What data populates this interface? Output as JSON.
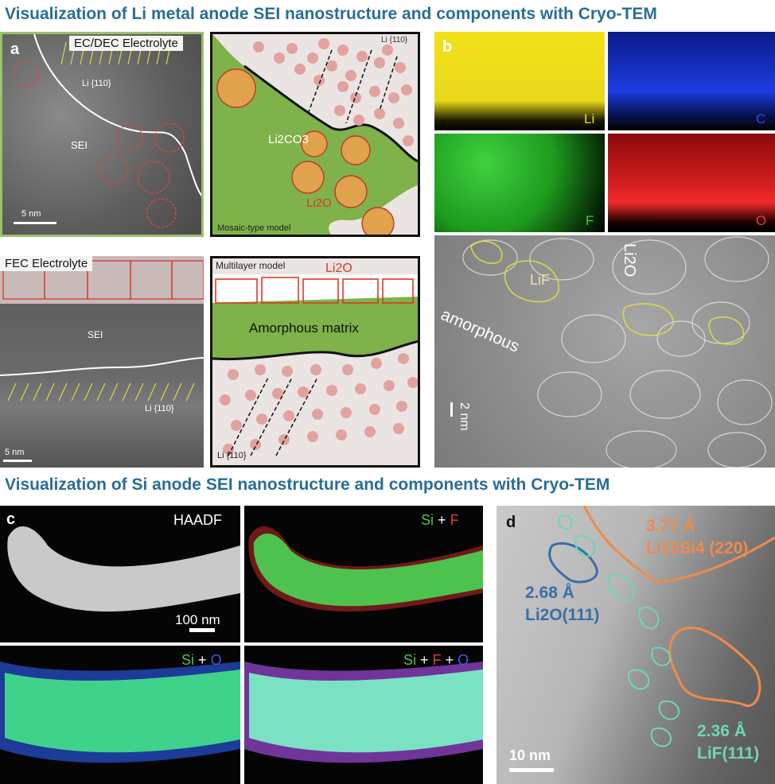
{
  "titles": {
    "li": "Visualization of Li metal anode SEI nanostructure and components with Cryo-TEM",
    "si": "Visualization of Si anode SEI nanostructure and components with Cryo-TEM"
  },
  "panel_a": {
    "label": "a",
    "top_tem": {
      "electrolyte": "EC/DEC Electrolyte",
      "li110": "Li {110}",
      "sei": "SEI",
      "scale": "5 nm"
    },
    "mosaic": {
      "li110": "Li {110}",
      "li2co3": "Li2CO3",
      "li2o": "Li2O",
      "model": "Mosaic-type model"
    },
    "bottom_tem": {
      "electrolyte": "FEC Electrolyte",
      "sei": "SEI",
      "li110": "Li {110}",
      "scale": "5 nm"
    },
    "multilayer": {
      "model": "Multilayer model",
      "li2o": "Li2O",
      "matrix": "Amorphous matrix",
      "li110": "Li {110}"
    }
  },
  "panel_b": {
    "label": "b",
    "maps": [
      "Li",
      "C",
      "F",
      "O"
    ],
    "tem": {
      "lif": "LiF",
      "li2o": "Li2O",
      "amorphous": "amorphous",
      "scale": "2 nm"
    }
  },
  "panel_c": {
    "label": "c",
    "haadf": "HAADF",
    "scale": "100 nm",
    "map1": [
      "Si",
      "+",
      "F"
    ],
    "map2": [
      "Si",
      "+",
      "O"
    ],
    "map3": [
      "Si",
      "+",
      "F",
      "+",
      "O"
    ]
  },
  "panel_d": {
    "label": "d",
    "li15si4_d": "3.77 Å",
    "li15si4_name": "Li15Si4 (220)",
    "li2o_d": "2.68 Å",
    "li2o_name": "Li2O(111)",
    "lif_d": "2.36 Å",
    "lif_name": "LiF(111)",
    "scale": "10 nm"
  },
  "colors": {
    "title": "#2a6d96",
    "green_border": "#9bc16a",
    "green_matrix": "#7fb24a",
    "dot": "#e2a39f",
    "li2o_red": "#d63a2a",
    "orange": "#f08a4b",
    "teal": "#6fd6b4",
    "blue": "#3a6ea8"
  }
}
